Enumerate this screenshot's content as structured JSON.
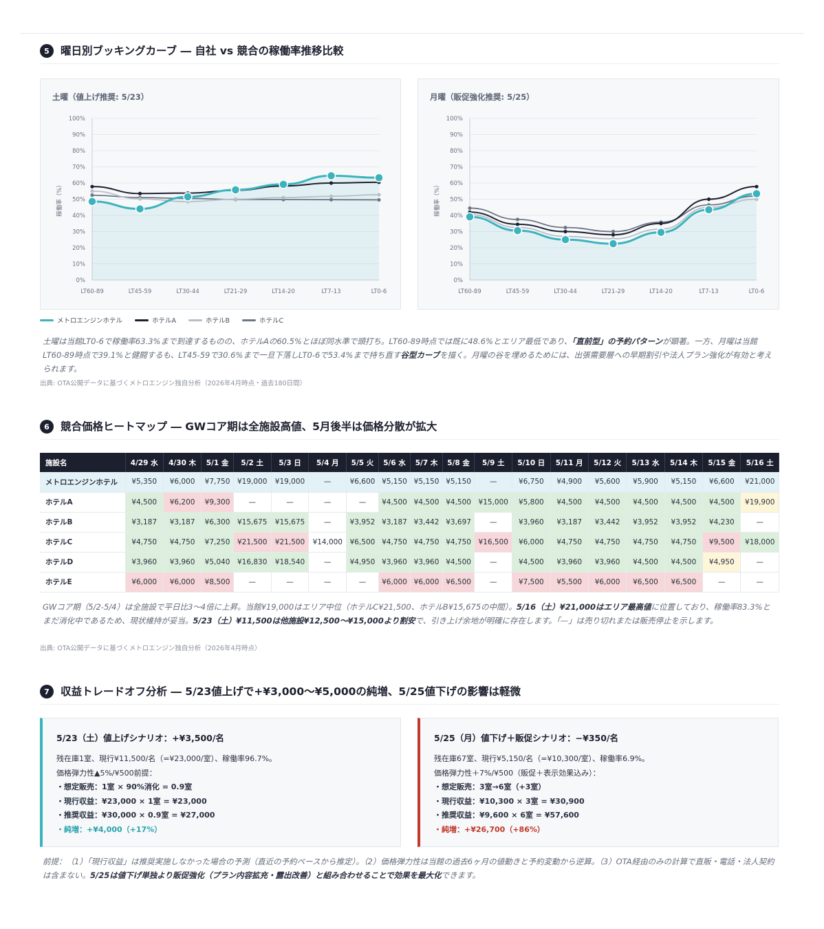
{
  "section5": {
    "num": "5",
    "title": "曜日別ブッキングカーブ ― 自社 vs 競合の稼働率推移比較",
    "note_parts": [
      {
        "t": "土曜は当館LT0-6で稼働率63.3%まで到達するものの、ホテルAの60.5%とほぼ同水準で頭打ち。LT60-89時点では既に48.6%とエリア最低であり、",
        "b": false
      },
      {
        "t": "「直前型」の予約パターン",
        "b": true
      },
      {
        "t": "が顕著。一方、月曜は当館LT60-89時点で39.1%と健闘するも、LT45-59で30.6%まで一旦下落しLT0-6で53.4%まで持ち直す",
        "b": false
      },
      {
        "t": "谷型カーブ",
        "b": true
      },
      {
        "t": "を描く。月曜の谷を埋めるためには、出張需要層への早期割引や法人プラン強化が有効と考えられます。",
        "b": false
      }
    ],
    "source": "出典: OTA公開データに基づくメトロエンジン独自分析（2026年4月時点・過去180日間）"
  },
  "legend": [
    {
      "label": "メトロエンジンホテル",
      "color": "#3bb3bd"
    },
    {
      "label": "ホテルA",
      "color": "#1c1f2e"
    },
    {
      "label": "ホテルB",
      "color": "#b8bec7"
    },
    {
      "label": "ホテルC",
      "color": "#6e7684"
    }
  ],
  "chart_data": [
    {
      "type": "line",
      "title": "土曜（値上げ推奨: 5/23）",
      "ylabel": "稼働率（%）",
      "ylim": [
        0,
        100
      ],
      "yticks": [
        "0%",
        "10%",
        "20%",
        "30%",
        "40%",
        "50%",
        "60%",
        "70%",
        "80%",
        "90%",
        "100%"
      ],
      "categories": [
        "LT60-89",
        "LT45-59",
        "LT30-44",
        "LT21-29",
        "LT14-20",
        "LT7-13",
        "LT0-6"
      ],
      "series": [
        {
          "name": "メトロエンジンホテル",
          "color": "#3bb3bd",
          "values": [
            48.6,
            44.0,
            51.5,
            55.8,
            59.2,
            64.5,
            63.3
          ]
        },
        {
          "name": "ホテルA",
          "color": "#1c1f2e",
          "values": [
            57.8,
            53.5,
            53.8,
            55.5,
            58.2,
            60.0,
            60.5
          ]
        },
        {
          "name": "ホテルB",
          "color": "#b8bec7",
          "values": [
            55.0,
            50.2,
            48.5,
            50.0,
            51.0,
            51.8,
            52.8
          ]
        },
        {
          "name": "ホテルC",
          "color": "#6e7684",
          "values": [
            52.5,
            51.0,
            50.5,
            49.8,
            49.8,
            49.7,
            49.6
          ]
        }
      ]
    },
    {
      "type": "line",
      "title": "月曜（販促強化推奨: 5/25）",
      "ylabel": "稼働率（%）",
      "ylim": [
        0,
        100
      ],
      "yticks": [
        "0%",
        "10%",
        "20%",
        "30%",
        "40%",
        "50%",
        "60%",
        "70%",
        "80%",
        "90%",
        "100%"
      ],
      "categories": [
        "LT60-89",
        "LT45-59",
        "LT30-44",
        "LT21-29",
        "LT14-20",
        "LT7-13",
        "LT0-6"
      ],
      "series": [
        {
          "name": "メトロエンジンホテル",
          "color": "#3bb3bd",
          "values": [
            39.1,
            30.6,
            25.0,
            22.5,
            29.5,
            43.5,
            53.4
          ]
        },
        {
          "name": "ホテルA",
          "color": "#1c1f2e",
          "values": [
            42.0,
            34.5,
            30.0,
            28.0,
            35.0,
            50.0,
            57.8
          ]
        },
        {
          "name": "ホテルB",
          "color": "#b8bec7",
          "values": [
            40.5,
            32.5,
            27.0,
            25.5,
            31.5,
            45.0,
            50.0
          ]
        },
        {
          "name": "ホテルC",
          "color": "#6e7684",
          "values": [
            44.5,
            37.5,
            32.5,
            30.0,
            35.8,
            46.5,
            52.0
          ]
        }
      ]
    }
  ],
  "section6": {
    "num": "6",
    "title": "競合価格ヒートマップ ― GWコア期は全施設高値、5月後半は価格分散が拡大",
    "headers": [
      "施設名",
      "4/29 水",
      "4/30 木",
      "5/1 金",
      "5/2 土",
      "5/3 日",
      "5/4 月",
      "5/5 火",
      "5/6 水",
      "5/7 木",
      "5/8 金",
      "5/9 土",
      "5/10 日",
      "5/11 月",
      "5/12 火",
      "5/13 水",
      "5/14 木",
      "5/15 金",
      "5/16 土"
    ],
    "rows": [
      {
        "name": "メトロエンジンホテル",
        "own": true,
        "cells": [
          "¥5,350",
          "¥6,000",
          "¥7,750",
          "¥19,000",
          "¥19,000",
          "—",
          "¥6,600",
          "¥5,150",
          "¥5,150",
          "¥5,150",
          "—",
          "¥6,750",
          "¥4,900",
          "¥5,600",
          "¥5,900",
          "¥5,150",
          "¥6,600",
          "¥21,000"
        ],
        "cls": [
          "",
          "",
          "",
          "",
          "",
          "",
          "",
          "",
          "",
          "",
          "",
          "",
          "",
          "",
          "",
          "",
          "",
          ""
        ]
      },
      {
        "name": "ホテルA",
        "own": false,
        "cells": [
          "¥4,500",
          "¥6,200",
          "¥9,300",
          "—",
          "—",
          "—",
          "—",
          "¥4,500",
          "¥4,500",
          "¥4,500",
          "¥15,000",
          "¥5,800",
          "¥4,500",
          "¥4,500",
          "¥4,500",
          "¥4,500",
          "¥4,500",
          "¥19,900"
        ],
        "cls": [
          "g",
          "r",
          "r",
          "n",
          "n",
          "n",
          "n",
          "g",
          "g",
          "g",
          "g",
          "g",
          "g",
          "g",
          "g",
          "g",
          "g",
          "y"
        ]
      },
      {
        "name": "ホテルB",
        "own": false,
        "cells": [
          "¥3,187",
          "¥3,187",
          "¥6,300",
          "¥15,675",
          "¥15,675",
          "—",
          "¥3,952",
          "¥3,187",
          "¥3,442",
          "¥3,697",
          "—",
          "¥3,960",
          "¥3,187",
          "¥3,442",
          "¥3,952",
          "¥3,952",
          "¥4,230",
          "—"
        ],
        "cls": [
          "g",
          "g",
          "g",
          "g",
          "g",
          "n",
          "g",
          "g",
          "g",
          "g",
          "n",
          "g",
          "g",
          "g",
          "g",
          "g",
          "g",
          "n"
        ]
      },
      {
        "name": "ホテルC",
        "own": false,
        "cells": [
          "¥4,750",
          "¥4,750",
          "¥7,250",
          "¥21,500",
          "¥21,500",
          "¥14,000",
          "¥6,500",
          "¥4,750",
          "¥4,750",
          "¥4,750",
          "¥16,500",
          "¥6,000",
          "¥4,750",
          "¥4,750",
          "¥4,750",
          "¥4,750",
          "¥9,500",
          "¥18,000"
        ],
        "cls": [
          "g",
          "g",
          "g",
          "r",
          "r",
          "n",
          "g",
          "g",
          "g",
          "g",
          "r",
          "g",
          "g",
          "g",
          "g",
          "g",
          "r",
          "g"
        ]
      },
      {
        "name": "ホテルD",
        "own": false,
        "cells": [
          "¥3,960",
          "¥3,960",
          "¥5,040",
          "¥16,830",
          "¥18,540",
          "—",
          "¥4,950",
          "¥3,960",
          "¥3,960",
          "¥4,500",
          "—",
          "¥4,500",
          "¥3,960",
          "¥3,960",
          "¥4,500",
          "¥4,500",
          "¥4,950",
          "—"
        ],
        "cls": [
          "g",
          "g",
          "g",
          "g",
          "g",
          "n",
          "g",
          "g",
          "g",
          "g",
          "n",
          "g",
          "g",
          "g",
          "g",
          "g",
          "y",
          "n"
        ]
      },
      {
        "name": "ホテルE",
        "own": false,
        "cells": [
          "¥6,000",
          "¥6,000",
          "¥8,500",
          "—",
          "—",
          "—",
          "—",
          "¥6,000",
          "¥6,000",
          "¥6,500",
          "—",
          "¥7,500",
          "¥5,500",
          "¥6,000",
          "¥6,500",
          "¥6,500",
          "—",
          "—"
        ],
        "cls": [
          "r",
          "r",
          "r",
          "n",
          "n",
          "n",
          "n",
          "r",
          "r",
          "r",
          "n",
          "r",
          "r",
          "r",
          "r",
          "r",
          "n",
          "n"
        ]
      }
    ],
    "note_parts": [
      {
        "t": "GWコア期（5/2-5/4）は全施設で平日比3〜4倍に上昇。当館¥19,000はエリア中位（ホテルC¥21,500、ホテルB¥15,675の中間）。",
        "b": false
      },
      {
        "t": "5/16（土）¥21,000はエリア最高値",
        "b": true
      },
      {
        "t": "に位置しており、稼働率83.3%とまだ消化中であるため、現状維持が妥当。",
        "b": false
      },
      {
        "t": "5/23（土）¥11,500は他施設¥12,500〜¥15,000より割安",
        "b": true
      },
      {
        "t": "で、引き上げ余地が明確に存在します。「—」は売り切れまたは販売停止を示します。",
        "b": false
      }
    ],
    "source": "出典: OTA公開データに基づくメトロエンジン独自分析（2026年4月時点）"
  },
  "section7": {
    "num": "7",
    "title": "収益トレードオフ分析 ― 5/23値上げで+¥3,000〜¥5,000の純増、5/25値下げの影響は軽微",
    "left": {
      "title": "5/23（土）値上げシナリオ：+¥3,500/名",
      "l1": "残在庫1室、現行¥11,500/名（=¥23,000/室）、稼働率96.7%。",
      "l2": "価格弾力性▲5%/¥500前提：",
      "b1": "・想定販売：1室 × 90%消化 = 0.9室",
      "b2": "・現行収益：¥23,000 × 1室 = ¥23,000",
      "b3": "・推奨収益：¥30,000 × 0.9室 = ¥27,000",
      "net": "・純増：+¥4,000（+17%）"
    },
    "right": {
      "title": "5/25（月）値下げ＋販促シナリオ：−¥350/名",
      "l1": "残在庫67室、現行¥5,150/名（=¥10,300/室）、稼働率6.9%。",
      "l2": "価格弾力性＋7%/¥500（販促＋表示効果込み）：",
      "b1": "・想定販売：3室→6室（+3室）",
      "b2": "・現行収益：¥10,300 × 3室 = ¥30,900",
      "b3": "・推奨収益：¥9,600 × 6室 = ¥57,600",
      "net": "・純増：+¥26,700（+86%）"
    },
    "note_parts": [
      {
        "t": "前提：（1）「現行収益」は推奨実施しなかった場合の予測（直近の予約ペースから推定）。（2）価格弾力性は当館の過去6ヶ月の値動きと予約変動から逆算。（3）OTA経由のみの計算で直販・電話・法人契約は含まない。",
        "b": false
      },
      {
        "t": "5/25は値下げ単独より販促強化（プラン内容拡充・露出改善）と組み合わせることで効果を最大化",
        "b": true
      },
      {
        "t": "できます。",
        "b": false
      }
    ]
  }
}
